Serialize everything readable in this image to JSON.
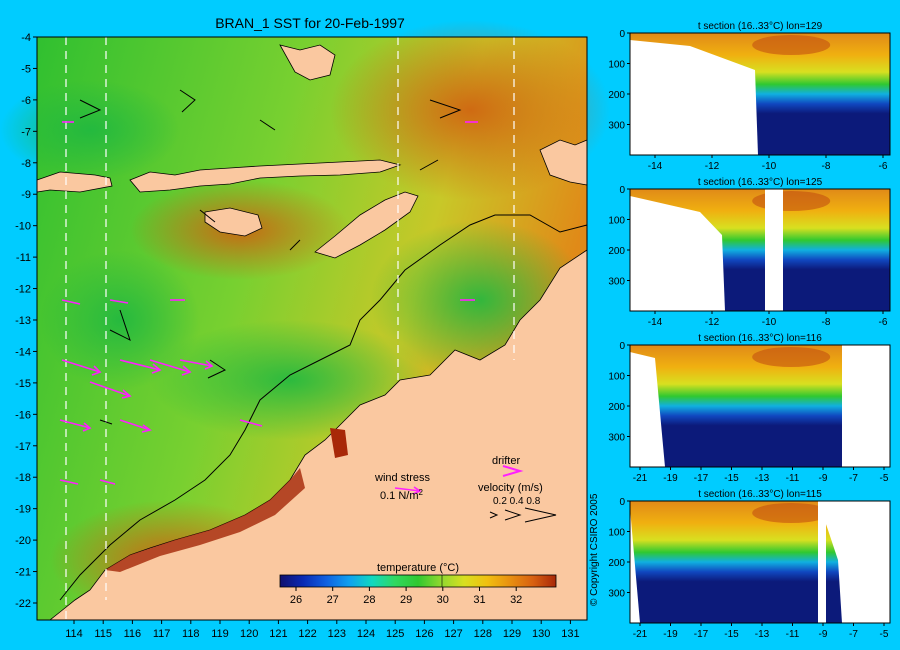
{
  "main_map": {
    "title": "BRAN_1 SST for 20-Feb-1997",
    "x_ticks": [
      "114",
      "115",
      "116",
      "117",
      "118",
      "119",
      "120",
      "121",
      "122",
      "123",
      "124",
      "125",
      "126",
      "127",
      "128",
      "129",
      "130",
      "131"
    ],
    "y_ticks": [
      "-4",
      "-5",
      "-6",
      "-7",
      "-8",
      "-9",
      "-10",
      "-11",
      "-12",
      "-13",
      "-14",
      "-15",
      "-16",
      "-17",
      "-18",
      "-19",
      "-20",
      "-21",
      "-22"
    ],
    "legend": {
      "wind_stress_label": "wind stress",
      "wind_stress_value": "0.1 N/m",
      "wind_stress_sup": "2",
      "drifter_label": "drifter",
      "velocity_label": "velocity (m/s)",
      "velocity_values": "0.2 0.4 0.8"
    },
    "colorbar": {
      "title": "temperature (°C)",
      "ticks": [
        "26",
        "27",
        "28",
        "29",
        "30",
        "31",
        "32"
      ],
      "colors": [
        "#10106e",
        "#0a2ab4",
        "#1060e0",
        "#10a0f0",
        "#10d8c0",
        "#30d860",
        "#30c830",
        "#90d830",
        "#d8e020",
        "#f0c010",
        "#e89010",
        "#d86010",
        "#a82808"
      ]
    }
  },
  "sections": [
    {
      "title": "t section (16..33°C) lon=129",
      "x_ticks": [
        "-14",
        "-12",
        "-10",
        "-8",
        "-6"
      ],
      "y_ticks": [
        "0",
        "100",
        "200",
        "300"
      ]
    },
    {
      "title": "t section (16..33°C) lon=125",
      "x_ticks": [
        "-14",
        "-12",
        "-10",
        "-8",
        "-6"
      ],
      "y_ticks": [
        "0",
        "100",
        "200",
        "300"
      ]
    },
    {
      "title": "t section (16..33°C) lon=116",
      "x_ticks": [
        "-21",
        "-19",
        "-17",
        "-15",
        "-13",
        "-11",
        "-9",
        "-7",
        "-5"
      ],
      "y_ticks": [
        "0",
        "100",
        "200",
        "300"
      ]
    },
    {
      "title": "t section (16..33°C) lon=115",
      "x_ticks": [
        "-21",
        "-19",
        "-17",
        "-15",
        "-13",
        "-11",
        "-9",
        "-7",
        "-5"
      ],
      "y_ticks": [
        "0",
        "100",
        "200",
        "300"
      ]
    }
  ],
  "copyright": "© Copyright CSIRO 2005",
  "chart_data": {
    "type": "heatmap",
    "title": "BRAN_1 SST for 20-Feb-1997",
    "xlim": [
      113.5,
      131.3
    ],
    "ylim": [
      -22.4,
      -4
    ],
    "colorbar_range": [
      25.5,
      33.3
    ],
    "colorbar_label": "temperature (°C)"
  }
}
